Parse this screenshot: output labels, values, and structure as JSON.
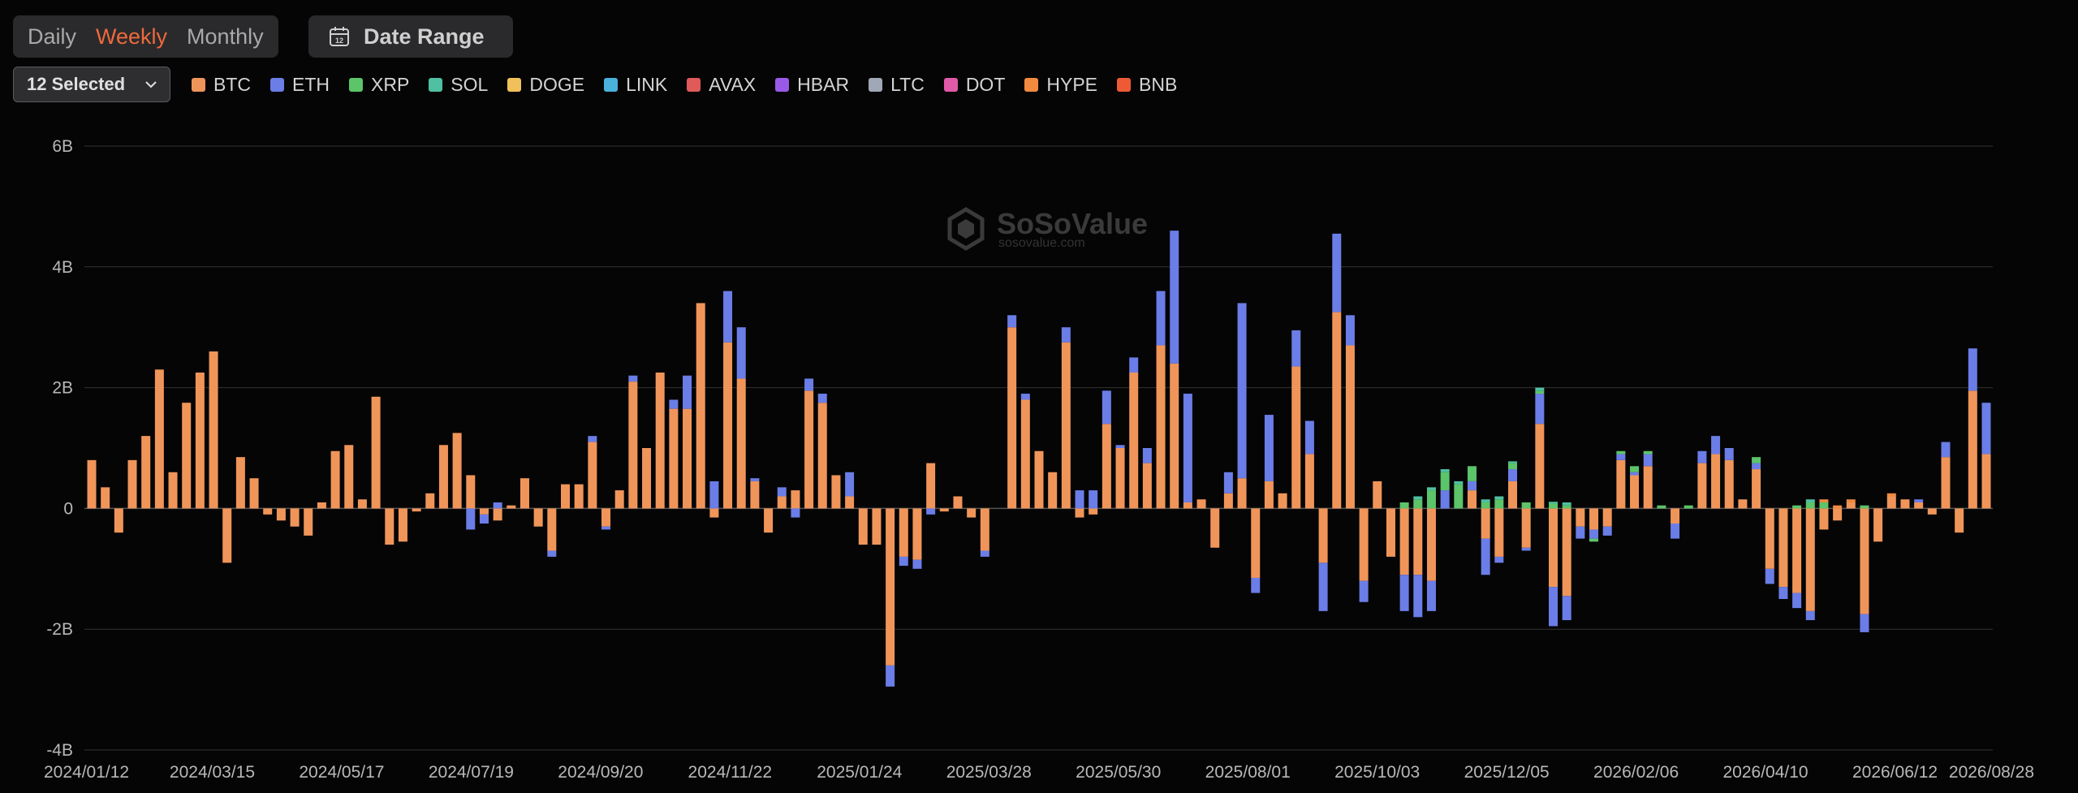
{
  "toolbar": {
    "periods": [
      {
        "label": "Daily",
        "active": false
      },
      {
        "label": "Weekly",
        "active": true
      },
      {
        "label": "Monthly",
        "active": false
      }
    ],
    "date_range_label": "Date Range",
    "select_label": "12 Selected"
  },
  "watermark": {
    "name": "SoSoValue",
    "url": "sosovalue.com"
  },
  "legend": [
    {
      "name": "BTC",
      "color": "#f0955a"
    },
    {
      "name": "ETH",
      "color": "#6b7de6"
    },
    {
      "name": "XRP",
      "color": "#5cc469"
    },
    {
      "name": "SOL",
      "color": "#4fc0a2"
    },
    {
      "name": "DOGE",
      "color": "#f1c05a"
    },
    {
      "name": "LINK",
      "color": "#4ab0dc"
    },
    {
      "name": "AVAX",
      "color": "#e05a5a"
    },
    {
      "name": "HBAR",
      "color": "#9a5ae8"
    },
    {
      "name": "LTC",
      "color": "#a0a8b8"
    },
    {
      "name": "DOT",
      "color": "#e05aa8"
    },
    {
      "name": "HYPE",
      "color": "#f08a40"
    },
    {
      "name": "BNB",
      "color": "#ee5a35"
    }
  ],
  "chart_data": {
    "type": "bar",
    "stacked": true,
    "ylim": [
      -4,
      6
    ],
    "y_unit": "B",
    "y_ticks": [
      "6B",
      "4B",
      "2B",
      "0",
      "-2B",
      "-4B"
    ],
    "x_ticks": [
      "2024/01/12",
      "2024/03/15",
      "2024/05/17",
      "2024/07/19",
      "2024/09/20",
      "2024/11/22",
      "2025/01/24",
      "2025/03/28",
      "2025/05/30",
      "2025/08/01",
      "2025/10/03",
      "2025/12/05",
      "2026/02/06",
      "2026/04/10",
      "2026/06/12",
      "2026/08/28"
    ],
    "series": [
      {
        "name": "BTC",
        "values": [
          0.8,
          0.35,
          -0.4,
          0.8,
          1.2,
          2.3,
          0.6,
          1.75,
          2.25,
          2.6,
          -0.9,
          0.85,
          0.5,
          -0.1,
          -0.2,
          -0.3,
          -0.45,
          0.1,
          0.95,
          1.05,
          0.15,
          1.85,
          -0.6,
          -0.55,
          -0.05,
          0.25,
          1.05,
          1.25,
          0.55,
          -0.1,
          -0.2,
          0.05,
          0.5,
          -0.3,
          -0.7,
          0.4,
          0.4,
          1.1,
          -0.3,
          0.3,
          2.1,
          1.0,
          2.25,
          1.65,
          1.65,
          3.4,
          -0.15,
          2.75,
          2.15,
          0.45,
          -0.4,
          0.2,
          0.3,
          1.95,
          1.75,
          0.55,
          0.2,
          -0.6,
          -0.6,
          -2.6,
          -0.8,
          -0.85,
          0.75,
          -0.05,
          0.2,
          -0.15,
          -0.7,
          0.0,
          3.0,
          1.8,
          0.95,
          0.6,
          2.75,
          -0.15,
          -0.1,
          1.4,
          1.0,
          2.25,
          0.75,
          2.7,
          2.4,
          0.1,
          0.15,
          -0.65,
          0.25,
          0.5,
          -1.15,
          0.45,
          0.25,
          2.35,
          0.9,
          -0.9,
          3.25,
          2.7,
          -1.2,
          0.45,
          -0.8,
          -1.1,
          -1.1,
          -1.2,
          0.0,
          0.0,
          0.3,
          -0.5,
          -0.8,
          0.45,
          -0.65,
          1.4,
          -1.3,
          -1.45,
          -0.3,
          -0.35,
          -0.3,
          0.8,
          0.55,
          0.7,
          0.0,
          -0.25,
          0.0,
          0.75,
          0.9,
          0.8,
          0.15,
          0.65,
          -1.0,
          -1.3,
          -1.4,
          -1.7,
          -0.35,
          -0.2,
          0.1,
          -1.75,
          -0.55,
          0.2,
          0.15,
          0.1,
          -0.1,
          0.85,
          -0.4,
          1.95,
          0.9
        ],
        "color": "#f0955a"
      },
      {
        "name": "ETH",
        "values": [
          0,
          0,
          0,
          0,
          0,
          0,
          0,
          0,
          0,
          0,
          0,
          0,
          0,
          0,
          0,
          0,
          0,
          0,
          0,
          0,
          0,
          0,
          0,
          0,
          0,
          0,
          0,
          0,
          -0.35,
          -0.15,
          0.1,
          0,
          0,
          0,
          -0.1,
          0,
          0,
          0.1,
          -0.05,
          0,
          0.1,
          0,
          0,
          0.15,
          0.55,
          0,
          0.45,
          0.85,
          0.85,
          0.05,
          0,
          0.15,
          -0.15,
          0.2,
          0.15,
          0,
          0.4,
          0,
          0,
          -0.35,
          -0.15,
          -0.15,
          -0.1,
          0,
          0,
          0,
          -0.1,
          0,
          0.2,
          0.1,
          0,
          0,
          0.25,
          0.3,
          0.3,
          0.55,
          0.05,
          0.25,
          0.25,
          0.9,
          2.2,
          1.8,
          0,
          0,
          0.35,
          2.9,
          -0.25,
          1.1,
          0,
          0.6,
          0.55,
          -0.8,
          1.3,
          0.5,
          -0.35,
          0,
          0,
          -0.6,
          -0.7,
          -0.5,
          0.3,
          0,
          0.15,
          -0.6,
          -0.1,
          0.2,
          -0.05,
          0.5,
          -0.65,
          -0.4,
          -0.2,
          -0.15,
          -0.15,
          0.1,
          0.05,
          0.2,
          0,
          -0.25,
          0,
          0.2,
          0.3,
          0.2,
          0,
          0.1,
          -0.25,
          -0.2,
          -0.25,
          -0.15,
          0,
          0,
          0,
          -0.3,
          0,
          0,
          0,
          0.05,
          0,
          0.25,
          0,
          0.7,
          0.85
        ],
        "color": "#6b7de6"
      },
      {
        "name": "XRP",
        "values": [
          0,
          0,
          0,
          0,
          0,
          0,
          0,
          0,
          0,
          0,
          0,
          0,
          0,
          0,
          0,
          0,
          0,
          0,
          0,
          0,
          0,
          0,
          0,
          0,
          0,
          0,
          0,
          0,
          0,
          0,
          0,
          0,
          0,
          0,
          0,
          0,
          0,
          0,
          0,
          0,
          0,
          0,
          0,
          0,
          0,
          0,
          0,
          0,
          0,
          0,
          0,
          0,
          0,
          0,
          0,
          0,
          0,
          0,
          0,
          0,
          0,
          0,
          0,
          0,
          0,
          0,
          0,
          0,
          0,
          0,
          0,
          0,
          0,
          0,
          0,
          0,
          0,
          0,
          0,
          0,
          0,
          0,
          0,
          0,
          0,
          0,
          0,
          0,
          0,
          0,
          0,
          0,
          0,
          0,
          0,
          0,
          0,
          0.1,
          0.15,
          0.3,
          0.3,
          0.4,
          0.25,
          0.1,
          0.15,
          0.1,
          0.1,
          0.05,
          0.08,
          0.05,
          0,
          -0.05,
          0,
          0.05,
          0.1,
          0.05,
          0.05,
          0,
          0.05,
          0,
          0,
          0,
          0,
          0.1,
          0,
          0,
          0.05,
          0.1,
          0.1,
          0,
          0,
          0.05,
          0,
          0,
          0,
          0,
          0,
          0,
          0,
          0,
          0,
          0.1,
          0.15
        ],
        "color": "#5cc469"
      },
      {
        "name": "SOL",
        "values": [
          0,
          0,
          0,
          0,
          0,
          0,
          0,
          0,
          0,
          0,
          0,
          0,
          0,
          0,
          0,
          0,
          0,
          0,
          0,
          0,
          0,
          0,
          0,
          0,
          0,
          0,
          0,
          0,
          0,
          0,
          0,
          0,
          0,
          0,
          0,
          0,
          0,
          0,
          0,
          0,
          0,
          0,
          0,
          0,
          0,
          0,
          0,
          0,
          0,
          0,
          0,
          0,
          0,
          0,
          0,
          0,
          0,
          0,
          0,
          0,
          0,
          0,
          0,
          0,
          0,
          0,
          0,
          0,
          0,
          0,
          0,
          0,
          0,
          0,
          0,
          0,
          0,
          0,
          0,
          0,
          0,
          0,
          0,
          0,
          0,
          0,
          0,
          0,
          0,
          0,
          0,
          0,
          0,
          0,
          0,
          0,
          0,
          0,
          0.05,
          0.05,
          0.05,
          0.05,
          0,
          0.05,
          0.05,
          0.03,
          0,
          0.05,
          0.03,
          0.05,
          0,
          0,
          0,
          0,
          0,
          0,
          0,
          0,
          0,
          0,
          0,
          0,
          0,
          0,
          0,
          0,
          0,
          0.05,
          0,
          0,
          0,
          0,
          0,
          0,
          0,
          0,
          0,
          0,
          0,
          0,
          0,
          0.05,
          0.1
        ],
        "color": "#4fc0a2"
      },
      {
        "name": "HYPE",
        "values": [
          0,
          0,
          0,
          0,
          0,
          0,
          0,
          0,
          0,
          0,
          0,
          0,
          0,
          0,
          0,
          0,
          0,
          0,
          0,
          0,
          0,
          0,
          0,
          0,
          0,
          0,
          0,
          0,
          0,
          0,
          0,
          0,
          0,
          0,
          0,
          0,
          0,
          0,
          0,
          0,
          0,
          0,
          0,
          0,
          0,
          0,
          0,
          0,
          0,
          0,
          0,
          0,
          0,
          0,
          0,
          0,
          0,
          0,
          0,
          0,
          0,
          0,
          0,
          0,
          0,
          0,
          0,
          0,
          0,
          0,
          0,
          0,
          0,
          0,
          0,
          0,
          0,
          0,
          0,
          0,
          0,
          0,
          0,
          0,
          0,
          0,
          0,
          0,
          0,
          0,
          0,
          0,
          0,
          0,
          0,
          0,
          0,
          0,
          0,
          0,
          0,
          0,
          0,
          0,
          0,
          0,
          0,
          0,
          0,
          0,
          0,
          0,
          0,
          0,
          0,
          0,
          0,
          0,
          0,
          0,
          0,
          0,
          0,
          0,
          0,
          0,
          0,
          0,
          0.05,
          0.05,
          0.05,
          0,
          0,
          0.05,
          0,
          0,
          0,
          0,
          0,
          0,
          0,
          0,
          0,
          0.02,
          0.03
        ],
        "color": "#f08a40"
      }
    ]
  }
}
